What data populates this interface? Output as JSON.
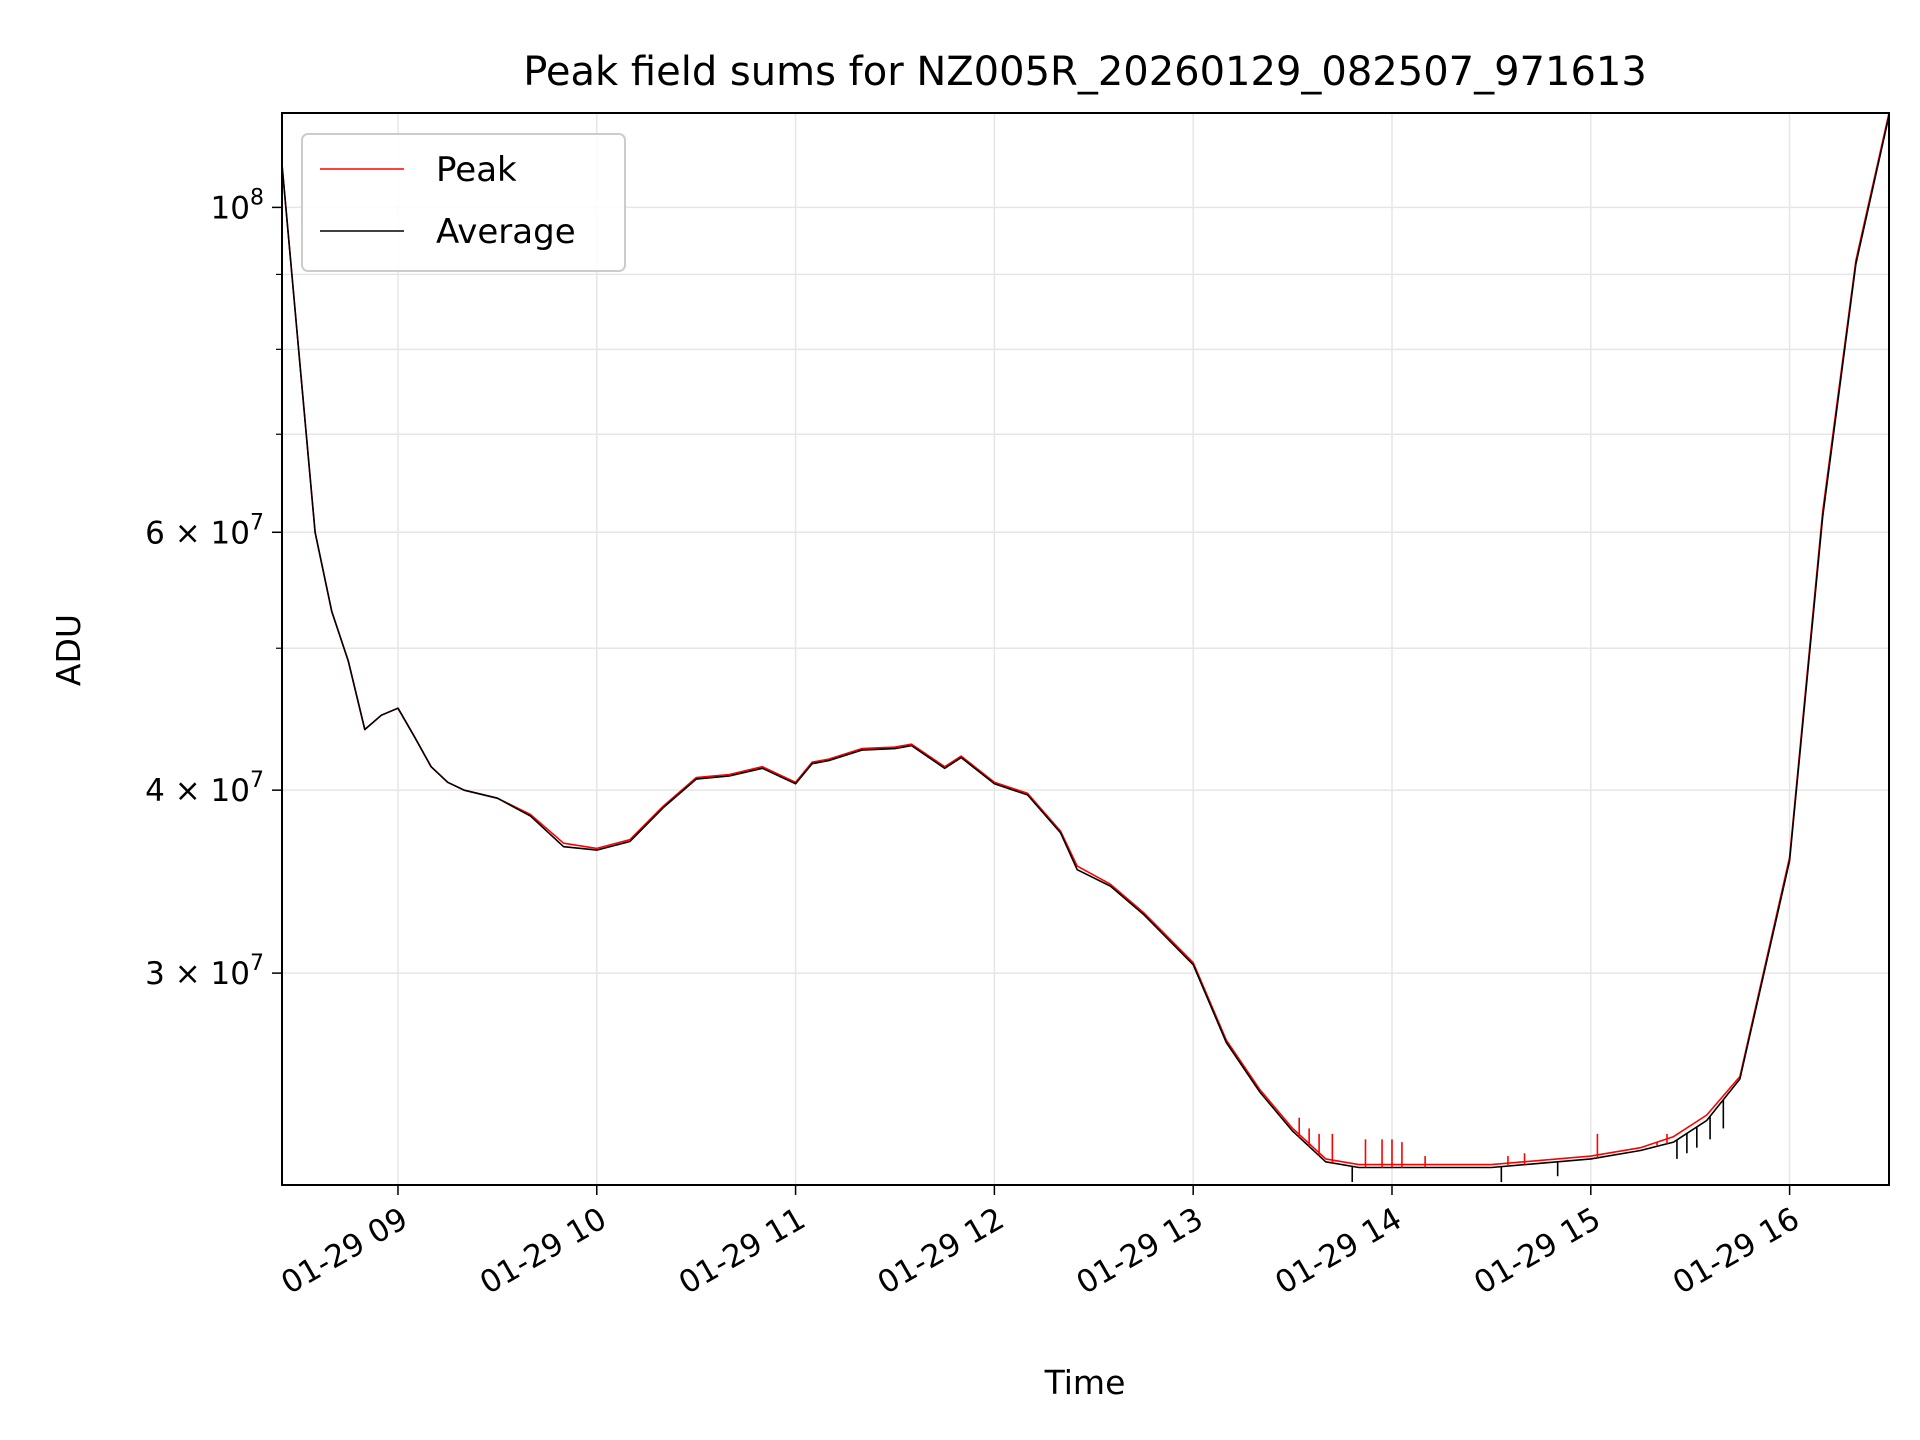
{
  "chart_data": {
    "type": "line",
    "title": "Peak field sums for NZ005R_20260129_082507_971613",
    "xlabel": "Time",
    "ylabel": "ADU",
    "yscale": "log",
    "xlim": [
      "2026-01-29 08:25",
      "2026-01-29 16:30"
    ],
    "ylim": [
      21500000,
      116000000
    ],
    "grid": true,
    "legend_position": "top-left",
    "x_tick_labels": [
      "01-29 09",
      "01-29 10",
      "01-29 11",
      "01-29 12",
      "01-29 13",
      "01-29 14",
      "01-29 15",
      "01-29 16"
    ],
    "x_ticks": [
      "2026-01-29 09:00",
      "2026-01-29 10:00",
      "2026-01-29 11:00",
      "2026-01-29 12:00",
      "2026-01-29 13:00",
      "2026-01-29 14:00",
      "2026-01-29 15:00",
      "2026-01-29 16:00"
    ],
    "y_ticks": [
      {
        "value": 100000000,
        "label_base": "10",
        "label_exp": "8",
        "mult": ""
      },
      {
        "value": 60000000,
        "label_base": "10",
        "label_exp": "7",
        "mult": "6 × "
      },
      {
        "value": 40000000,
        "label_base": "10",
        "label_exp": "7",
        "mult": "4 × "
      },
      {
        "value": 30000000,
        "label_base": "10",
        "label_exp": "7",
        "mult": "3 × "
      }
    ],
    "y_minor_ticks": [
      90000000,
      80000000,
      70000000,
      50000000
    ],
    "series": [
      {
        "name": "Peak",
        "color": "#ff0000",
        "x": [
          "2026-01-29 08:25",
          "2026-01-29 08:30",
          "2026-01-29 08:35",
          "2026-01-29 08:40",
          "2026-01-29 08:45",
          "2026-01-29 08:50",
          "2026-01-29 08:55",
          "2026-01-29 09:00",
          "2026-01-29 09:05",
          "2026-01-29 09:10",
          "2026-01-29 09:15",
          "2026-01-29 09:20",
          "2026-01-29 09:30",
          "2026-01-29 09:40",
          "2026-01-29 09:50",
          "2026-01-29 10:00",
          "2026-01-29 10:10",
          "2026-01-29 10:20",
          "2026-01-29 10:30",
          "2026-01-29 10:40",
          "2026-01-29 10:50",
          "2026-01-29 11:00",
          "2026-01-29 11:05",
          "2026-01-29 11:10",
          "2026-01-29 11:20",
          "2026-01-29 11:30",
          "2026-01-29 11:35",
          "2026-01-29 11:45",
          "2026-01-29 11:50",
          "2026-01-29 12:00",
          "2026-01-29 12:10",
          "2026-01-29 12:20",
          "2026-01-29 12:25",
          "2026-01-29 12:35",
          "2026-01-29 12:45",
          "2026-01-29 13:00",
          "2026-01-29 13:10",
          "2026-01-29 13:20",
          "2026-01-29 13:30",
          "2026-01-29 13:40",
          "2026-01-29 13:50",
          "2026-01-29 14:00",
          "2026-01-29 14:30",
          "2026-01-29 15:00",
          "2026-01-29 15:15",
          "2026-01-29 15:25",
          "2026-01-29 15:35",
          "2026-01-29 15:45",
          "2026-01-29 16:00",
          "2026-01-29 16:10",
          "2026-01-29 16:20",
          "2026-01-29 16:30"
        ],
        "y": [
          107000000,
          80000000,
          60000000,
          53000000,
          49000000,
          44000000,
          45000000,
          45500000,
          43500000,
          41500000,
          40500000,
          40000000,
          39500000,
          38500000,
          36800000,
          36500000,
          37000000,
          39000000,
          40800000,
          41000000,
          41500000,
          40500000,
          41800000,
          42000000,
          42700000,
          42800000,
          43000000,
          41500000,
          42200000,
          40500000,
          39800000,
          37500000,
          35500000,
          34500000,
          33000000,
          30500000,
          27000000,
          25000000,
          23500000,
          22400000,
          22200000,
          22200000,
          22200000,
          22500000,
          22800000,
          23200000,
          24000000,
          25500000,
          36000000,
          62000000,
          92000000,
          116000000
        ]
      },
      {
        "name": "Average",
        "color": "#000000",
        "x": [
          "2026-01-29 08:25",
          "2026-01-29 08:30",
          "2026-01-29 08:35",
          "2026-01-29 08:40",
          "2026-01-29 08:45",
          "2026-01-29 08:50",
          "2026-01-29 08:55",
          "2026-01-29 09:00",
          "2026-01-29 09:05",
          "2026-01-29 09:10",
          "2026-01-29 09:15",
          "2026-01-29 09:20",
          "2026-01-29 09:30",
          "2026-01-29 09:40",
          "2026-01-29 09:50",
          "2026-01-29 10:00",
          "2026-01-29 10:10",
          "2026-01-29 10:20",
          "2026-01-29 10:30",
          "2026-01-29 10:40",
          "2026-01-29 10:50",
          "2026-01-29 11:00",
          "2026-01-29 11:05",
          "2026-01-29 11:10",
          "2026-01-29 11:20",
          "2026-01-29 11:30",
          "2026-01-29 11:35",
          "2026-01-29 11:45",
          "2026-01-29 11:50",
          "2026-01-29 12:00",
          "2026-01-29 12:10",
          "2026-01-29 12:20",
          "2026-01-29 12:25",
          "2026-01-29 12:35",
          "2026-01-29 12:45",
          "2026-01-29 13:00",
          "2026-01-29 13:10",
          "2026-01-29 13:20",
          "2026-01-29 13:30",
          "2026-01-29 13:40",
          "2026-01-29 13:50",
          "2026-01-29 14:00",
          "2026-01-29 14:30",
          "2026-01-29 15:00",
          "2026-01-29 15:15",
          "2026-01-29 15:25",
          "2026-01-29 15:35",
          "2026-01-29 15:45",
          "2026-01-29 16:00",
          "2026-01-29 16:10",
          "2026-01-29 16:20",
          "2026-01-29 16:30"
        ],
        "y": [
          107000000,
          80000000,
          60000000,
          53000000,
          49000000,
          44000000,
          45000000,
          45500000,
          43500000,
          41500000,
          40500000,
          40000000,
          39500000,
          38400000,
          36600000,
          36400000,
          36900000,
          38900000,
          40700000,
          40900000,
          41400000,
          40400000,
          41700000,
          41900000,
          42600000,
          42700000,
          42900000,
          41400000,
          42100000,
          40400000,
          39700000,
          37400000,
          35300000,
          34400000,
          32900000,
          30400000,
          26900000,
          24900000,
          23400000,
          22300000,
          22100000,
          22100000,
          22100000,
          22400000,
          22700000,
          23000000,
          23800000,
          25400000,
          35800000,
          61500000,
          91500000,
          115500000
        ]
      }
    ],
    "peak_spikes": [
      {
        "x": "2026-01-29 13:32",
        "y": 23900000
      },
      {
        "x": "2026-01-29 13:35",
        "y": 23500000
      },
      {
        "x": "2026-01-29 13:38",
        "y": 23300000
      },
      {
        "x": "2026-01-29 13:42",
        "y": 23300000
      },
      {
        "x": "2026-01-29 13:52",
        "y": 23100000
      },
      {
        "x": "2026-01-29 13:57",
        "y": 23100000
      },
      {
        "x": "2026-01-29 14:00",
        "y": 23100000
      },
      {
        "x": "2026-01-29 14:03",
        "y": 23000000
      },
      {
        "x": "2026-01-29 14:10",
        "y": 22500000
      },
      {
        "x": "2026-01-29 14:35",
        "y": 22500000
      },
      {
        "x": "2026-01-29 14:40",
        "y": 22600000
      },
      {
        "x": "2026-01-29 15:02",
        "y": 23300000
      },
      {
        "x": "2026-01-29 15:20",
        "y": 23000000
      },
      {
        "x": "2026-01-29 15:23",
        "y": 23300000
      }
    ],
    "average_dips": [
      {
        "x": "2026-01-29 13:48",
        "y": 21600000
      },
      {
        "x": "2026-01-29 14:33",
        "y": 21600000
      },
      {
        "x": "2026-01-29 14:50",
        "y": 21800000
      },
      {
        "x": "2026-01-29 15:26",
        "y": 22400000
      },
      {
        "x": "2026-01-29 15:29",
        "y": 22600000
      },
      {
        "x": "2026-01-29 15:32",
        "y": 22800000
      },
      {
        "x": "2026-01-29 15:36",
        "y": 23100000
      },
      {
        "x": "2026-01-29 15:40",
        "y": 23500000
      }
    ]
  }
}
